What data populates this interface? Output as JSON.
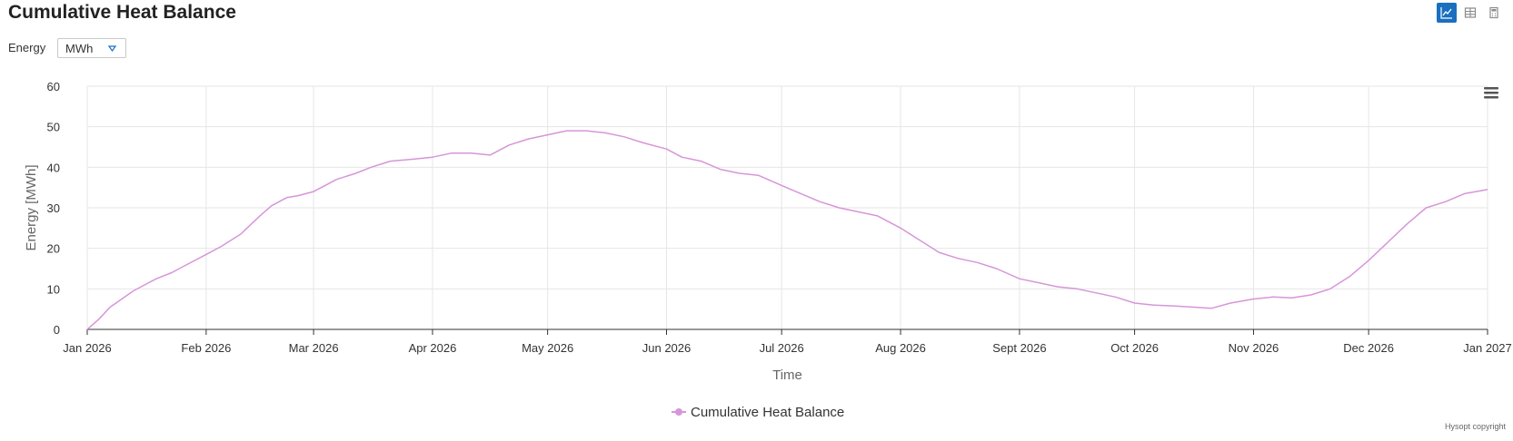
{
  "page": {
    "title": "Cumulative Heat Balance",
    "energy_label": "Energy",
    "unit_select": {
      "selected": "MWh"
    },
    "copyright": "Hysopt copyright",
    "menu_icon": "hamburger-menu-icon",
    "view_icons": [
      "line-chart-icon",
      "table-icon",
      "calculator-icon"
    ]
  },
  "colors": {
    "series": "#d696d8",
    "accent": "#1a6fbf",
    "grid": "#e6e6e6",
    "axis": "#333333"
  },
  "chart_data": {
    "type": "line",
    "title": "",
    "xlabel": "Time",
    "ylabel": "Energy [MWh]",
    "ylim": [
      0,
      60
    ],
    "yticks": [
      0,
      10,
      20,
      30,
      40,
      50,
      60
    ],
    "xlim": [
      0,
      365
    ],
    "xticks": [
      {
        "label": "Jan 2026",
        "day": 0
      },
      {
        "label": "Feb 2026",
        "day": 31
      },
      {
        "label": "Mar 2026",
        "day": 59
      },
      {
        "label": "Apr 2026",
        "day": 90
      },
      {
        "label": "May 2026",
        "day": 120
      },
      {
        "label": "Jun 2026",
        "day": 151
      },
      {
        "label": "Jul 2026",
        "day": 181
      },
      {
        "label": "Aug 2026",
        "day": 212
      },
      {
        "label": "Sept 2026",
        "day": 243
      },
      {
        "label": "Oct 2026",
        "day": 273
      },
      {
        "label": "Nov 2026",
        "day": 304
      },
      {
        "label": "Dec 2026",
        "day": 334
      },
      {
        "label": "Jan 2027",
        "day": 365
      }
    ],
    "grid": true,
    "legend": "bottom-center",
    "series": [
      {
        "name": "Cumulative Heat Balance",
        "x": [
          0,
          3,
          6,
          9,
          12,
          15,
          18,
          22,
          26,
          31,
          35,
          40,
          45,
          48,
          52,
          55,
          59,
          62,
          65,
          70,
          74,
          79,
          85,
          90,
          95,
          100,
          105,
          110,
          115,
          120,
          125,
          130,
          135,
          140,
          145,
          151,
          155,
          160,
          165,
          170,
          175,
          181,
          186,
          191,
          196,
          201,
          206,
          212,
          217,
          222,
          227,
          232,
          237,
          243,
          248,
          253,
          258,
          263,
          268,
          273,
          278,
          283,
          288,
          293,
          298,
          304,
          309,
          314,
          319,
          324,
          329,
          334,
          339,
          344,
          349,
          354,
          359,
          365
        ],
        "values": [
          0,
          2.5,
          5.5,
          7.5,
          9.5,
          11,
          12.5,
          14,
          16,
          18.5,
          20.5,
          23.5,
          28,
          30.5,
          32.5,
          33,
          34,
          35.5,
          37,
          38.5,
          40,
          41.5,
          42,
          42.5,
          43.5,
          43.5,
          43,
          45.5,
          47,
          48,
          49,
          49,
          48.5,
          47.5,
          46,
          44.5,
          42.5,
          41.5,
          39.5,
          38.5,
          38,
          35.5,
          33.5,
          31.5,
          30,
          29,
          28,
          25,
          22,
          19,
          17.5,
          16.5,
          15,
          12.5,
          11.5,
          10.5,
          10,
          9,
          8,
          6.5,
          6,
          5.8,
          5.5,
          5.2,
          6.5,
          7.5,
          8,
          7.8,
          8.5,
          10,
          13,
          17,
          21.5,
          26,
          30,
          31.5,
          33.5,
          34.5
        ]
      }
    ]
  }
}
